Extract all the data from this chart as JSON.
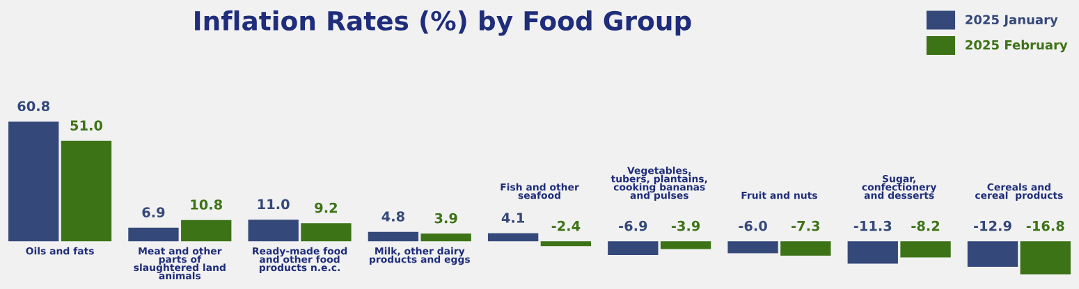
{
  "chart_data": {
    "type": "bar",
    "title": "Inflation Rates (%) by Food Group",
    "categories": [
      "Oils and fats",
      "Meat and other\nparts of\nslaughtered land\nanimals",
      "Ready-made food\nand other food\nproducts n.e.c.",
      "Milk, other dairy\nproducts and eggs",
      "Fish and other\nseafood",
      "Vegetables,\ntubers, plantains,\ncooking bananas\nand pulses",
      "Fruit and nuts",
      "Sugar,\nconfectionery\nand desserts",
      "Cereals and\ncereal  products"
    ],
    "series": [
      {
        "name": "2025 January",
        "color": "#34487a",
        "values": [
          60.8,
          6.9,
          11.0,
          4.8,
          4.1,
          -6.9,
          -6.0,
          -11.3,
          -12.9
        ],
        "value_labels": [
          "60.8",
          "6.9",
          "11.0",
          "4.8",
          "4.1",
          "-6.9",
          "-6.0",
          "-11.3",
          "-12.9"
        ]
      },
      {
        "name": "2025 February",
        "color": "#3d7317",
        "values": [
          51.0,
          10.8,
          9.2,
          3.9,
          -2.4,
          -3.9,
          -7.3,
          -8.2,
          -16.8
        ],
        "value_labels": [
          "51.0",
          "10.8",
          "9.2",
          "3.9",
          "-2.4",
          "-3.9",
          "-7.3",
          "-8.2",
          "-16.8"
        ]
      }
    ],
    "legend": "top right"
  }
}
